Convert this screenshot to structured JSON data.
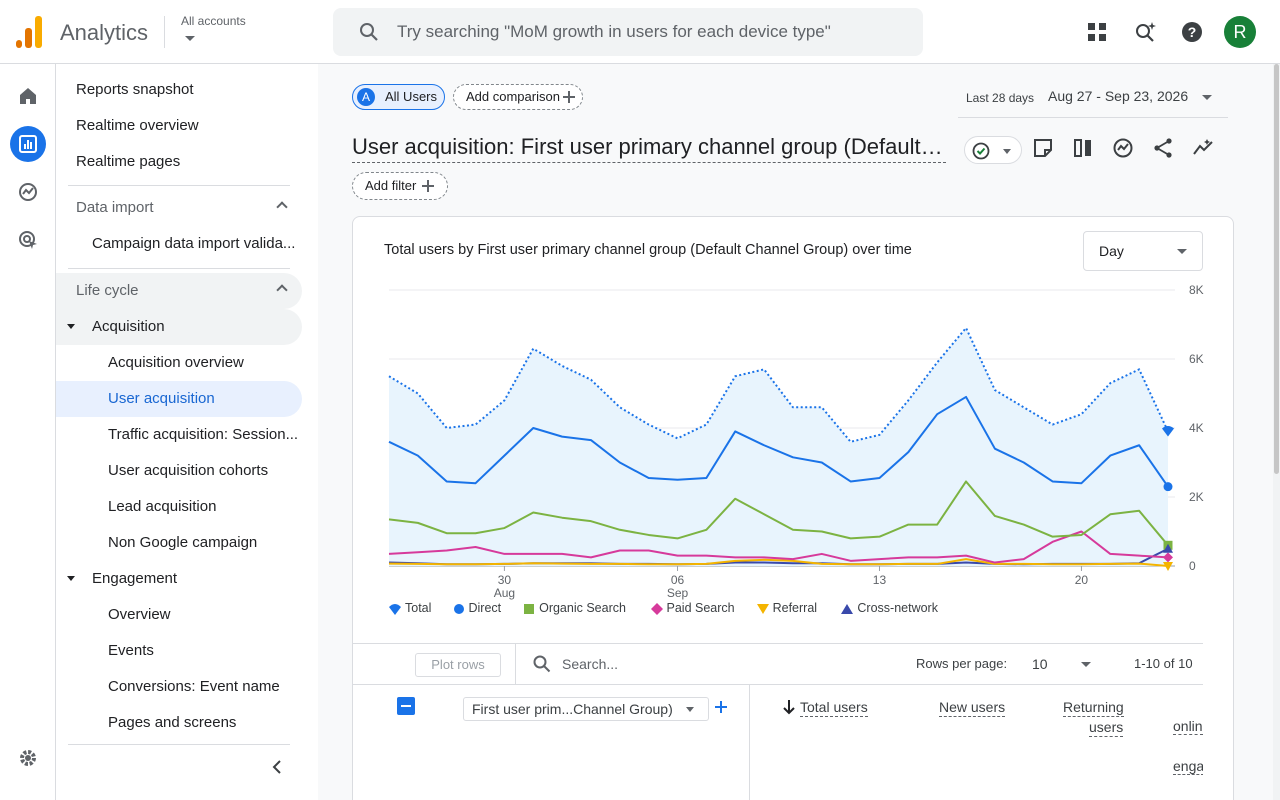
{
  "header": {
    "app_name": "Analytics",
    "accounts_label": "All accounts",
    "search_placeholder": "Try searching \"MoM growth in users for each device type\"",
    "avatar_initial": "R",
    "avatar_color": "#188038",
    "icons": [
      "apps-grid-icon",
      "search-insights-icon",
      "help-icon"
    ]
  },
  "rail": {
    "items": [
      "home-icon",
      "reports-icon",
      "explore-icon",
      "advertising-icon"
    ],
    "active": "reports-icon",
    "bottom": "settings-icon"
  },
  "nav": {
    "top_items": [
      "Reports snapshot",
      "Realtime overview",
      "Realtime pages"
    ],
    "data_import": {
      "label": "Data import",
      "items": [
        "Campaign data import valida..."
      ]
    },
    "life_cycle": {
      "label": "Life cycle"
    },
    "acquisition": {
      "label": "Acquisition",
      "items": [
        "Acquisition overview",
        "User acquisition",
        "Traffic acquisition: Session...",
        "User acquisition cohorts",
        "Lead acquisition",
        "Non Google campaign"
      ],
      "selected": "User acquisition"
    },
    "engagement": {
      "label": "Engagement",
      "items": [
        "Overview",
        "Events",
        "Conversions: Event name",
        "Pages and screens"
      ]
    }
  },
  "toolbar": {
    "all_users_badge": "A",
    "all_users_label": "All Users",
    "add_comparison_label": "Add comparison",
    "date_range_label": "Last 28 days",
    "date_range_value": "Aug 27 - Sep 23, 2026",
    "page_title": "User acquisition: First user primary channel group (Default Channel Group)",
    "add_filter_label": "Add filter",
    "title_icons": [
      "status-check-icon",
      "annotation-icon",
      "compare-icon",
      "insights-icon",
      "share-icon",
      "trend-icon"
    ]
  },
  "chart": {
    "title": "Total users by First user primary channel group (Default Channel Group) over time",
    "granularity": "Day"
  },
  "chart_data": {
    "type": "line",
    "x_tick_labels": [
      {
        "day": 4,
        "line1": "30",
        "line2": "Aug"
      },
      {
        "day": 10,
        "line1": "06",
        "line2": "Sep"
      },
      {
        "day": 17,
        "line1": "13",
        "line2": ""
      },
      {
        "day": 24,
        "line1": "20",
        "line2": ""
      }
    ],
    "y_ticks": [
      0,
      2000,
      4000,
      6000,
      8000
    ],
    "y_tick_labels": [
      "0",
      "2K",
      "4K",
      "6K",
      "8K"
    ],
    "ylim": [
      0,
      8000
    ],
    "x_count": 28,
    "grid": true,
    "series": [
      {
        "name": "Total",
        "color": "#1a73e8",
        "style": "dotted",
        "fill": true,
        "marker": "pin",
        "values": [
          5500,
          5000,
          4000,
          4100,
          4800,
          6300,
          5800,
          5400,
          4600,
          4100,
          3700,
          4100,
          5500,
          5700,
          4600,
          4600,
          3600,
          3800,
          4800,
          5900,
          6900,
          5100,
          4600,
          4100,
          4400,
          5300,
          5700,
          3900
        ]
      },
      {
        "name": "Direct",
        "color": "#1a73e8",
        "style": "solid",
        "marker": "circle",
        "values": [
          3600,
          3200,
          2450,
          2400,
          3200,
          4000,
          3750,
          3650,
          3000,
          2550,
          2500,
          2550,
          3900,
          3500,
          3150,
          3000,
          2450,
          2550,
          3300,
          4400,
          4900,
          3400,
          3000,
          2450,
          2400,
          3200,
          3500,
          2300
        ]
      },
      {
        "name": "Organic Search",
        "color": "#7cb342",
        "style": "solid",
        "marker": "square",
        "values": [
          1350,
          1250,
          950,
          950,
          1100,
          1550,
          1400,
          1300,
          1050,
          900,
          800,
          1050,
          1950,
          1500,
          1050,
          1000,
          800,
          850,
          1200,
          1200,
          2450,
          1450,
          1200,
          850,
          900,
          1500,
          1600,
          600
        ]
      },
      {
        "name": "Paid Search",
        "color": "#d63a9b",
        "style": "solid",
        "marker": "diamond",
        "values": [
          350,
          400,
          450,
          550,
          350,
          350,
          350,
          250,
          450,
          450,
          300,
          300,
          250,
          250,
          200,
          350,
          150,
          200,
          250,
          250,
          300,
          100,
          200,
          700,
          1000,
          350,
          300,
          250
        ]
      },
      {
        "name": "Referral",
        "color": "#f4b400",
        "style": "solid",
        "marker": "triangle-down",
        "values": [
          70,
          60,
          50,
          50,
          60,
          80,
          70,
          60,
          60,
          50,
          50,
          60,
          150,
          180,
          150,
          60,
          50,
          50,
          60,
          60,
          200,
          60,
          60,
          50,
          50,
          60,
          70,
          0
        ]
      },
      {
        "name": "Cross-network",
        "color": "#3949ab",
        "style": "solid",
        "marker": "triangle-up",
        "values": [
          100,
          80,
          50,
          50,
          60,
          80,
          80,
          80,
          60,
          60,
          50,
          60,
          100,
          100,
          80,
          80,
          50,
          50,
          60,
          60,
          100,
          60,
          50,
          60,
          60,
          60,
          80,
          500
        ]
      }
    ]
  },
  "table": {
    "plot_rows_label": "Plot rows",
    "search_placeholder": "Search...",
    "rows_per_page_label": "Rows per page:",
    "rows_per_page_value": "10",
    "range_label": "1-10 of 10",
    "dimension_label": "First user prim...Channel Group)",
    "columns": [
      "Total users",
      "New users",
      "Returning users"
    ],
    "column_returning_line1": "Returning",
    "column_returning_line2": "users",
    "clipped_column_fragments": [
      "onlin",
      "enga"
    ]
  }
}
